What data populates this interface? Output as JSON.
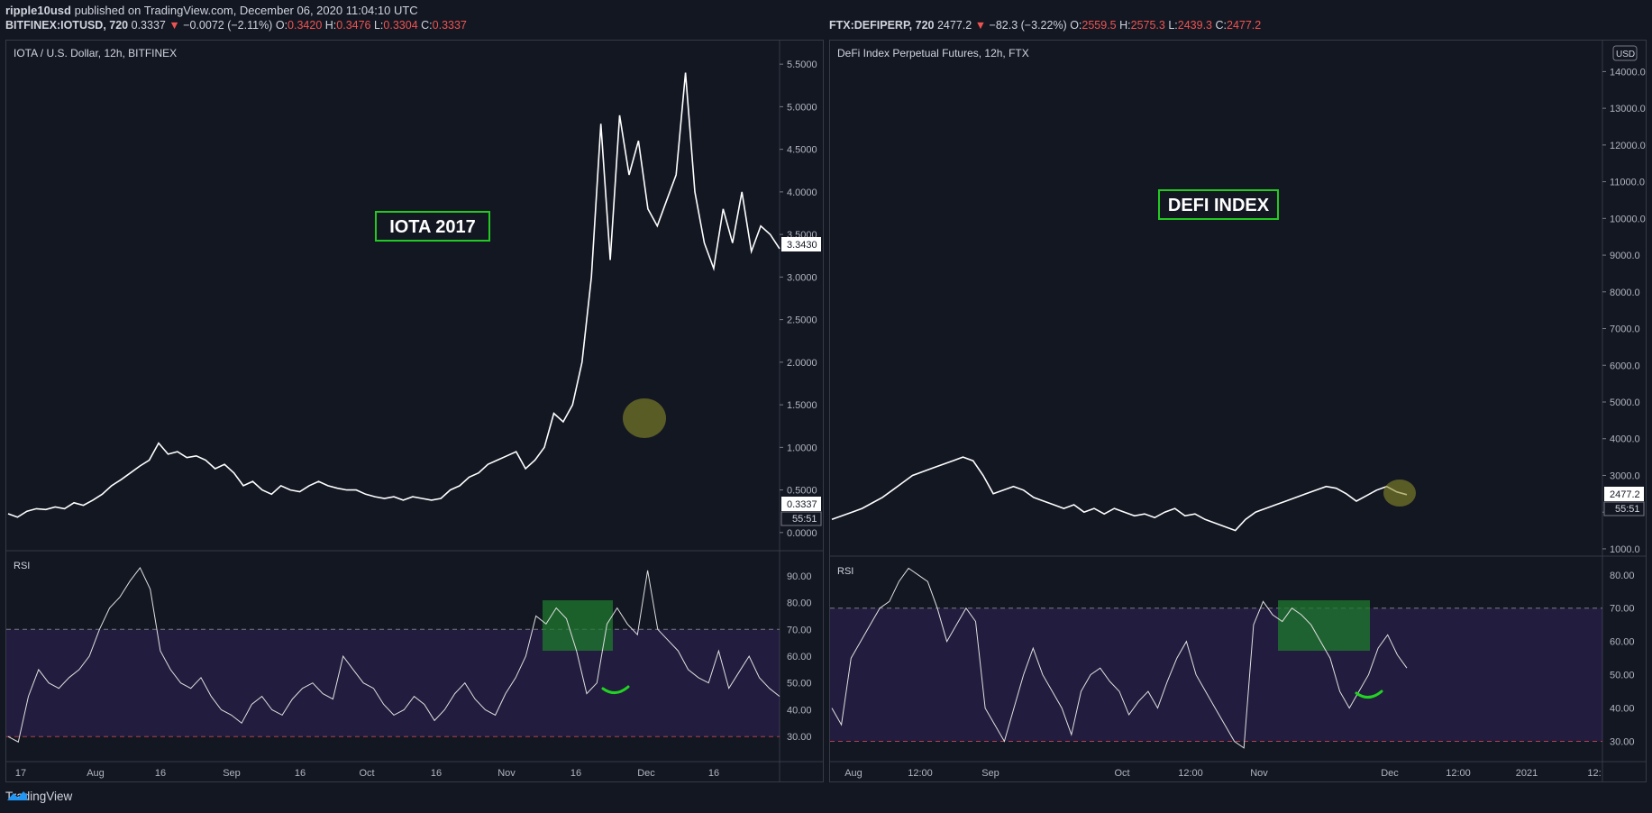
{
  "header": {
    "author": "ripple10usd",
    "published": "published on TradingView.com, December 06, 2020 11:04:10 UTC"
  },
  "footer": {
    "brand": "TradingView"
  },
  "colors": {
    "bg": "#131722",
    "line": "#ffffff",
    "down": "#ef5350",
    "rsi_band": "#7b3fe4",
    "highlight_green": "#1f7a2e",
    "label_green": "#22c922",
    "circle": "#8a8a2a"
  },
  "charts": [
    {
      "id": "left",
      "symbol_line": {
        "symbol": "BITFINEX:IOTUSD, 720",
        "last": "0.3337",
        "change": "−0.0072 (−2.11%)",
        "o_label": "O:",
        "o": "0.3420",
        "h_label": "H:",
        "h": "0.3476",
        "l_label": "L:",
        "l": "0.3304",
        "c_label": "C:",
        "c": "0.3337"
      },
      "pane_title": "IOTA / U.S. Dollar, 12h, BITFINEX",
      "annotation": "IOTA 2017",
      "rsi_title": "RSI",
      "price_label": "0.3337",
      "countdown": "55:51",
      "max_label": "3.3430"
    },
    {
      "id": "right",
      "symbol_line": {
        "symbol": "FTX:DEFIPERP, 720",
        "last": "2477.2",
        "change": "−82.3 (−3.22%)",
        "o_label": "O:",
        "o": "2559.5",
        "h_label": "H:",
        "h": "2575.3",
        "l_label": "L:",
        "l": "2439.3",
        "c_label": "C:",
        "c": "2477.2"
      },
      "pane_title": "DeFi Index Perpetual Futures, 12h, FTX",
      "annotation": "DEFI INDEX",
      "rsi_title": "RSI",
      "price_label": "2477.2",
      "countdown": "55:51",
      "currency": "USD"
    }
  ],
  "chart_data": [
    {
      "type": "line",
      "title": "IOTA / U.S. Dollar, 12h, BITFINEX",
      "y_ticks": [
        "5.5000",
        "5.0000",
        "4.5000",
        "4.0000",
        "3.5000",
        "3.0000",
        "2.5000",
        "2.0000",
        "1.5000",
        "1.0000",
        "0.5000",
        "0.0000"
      ],
      "x_ticks": [
        "17",
        "Aug",
        "16",
        "Sep",
        "16",
        "Oct",
        "16",
        "Nov",
        "16",
        "Dec",
        "16"
      ],
      "ylim": [
        -0.15,
        5.65
      ],
      "series": [
        {
          "values": [
            0.22,
            0.18,
            0.25,
            0.28,
            0.27,
            0.3,
            0.28,
            0.35,
            0.32,
            0.38,
            0.45,
            0.55,
            0.62,
            0.7,
            0.78,
            0.85,
            1.05,
            0.92,
            0.95,
            0.88,
            0.9,
            0.85,
            0.75,
            0.8,
            0.7,
            0.55,
            0.6,
            0.5,
            0.45,
            0.55,
            0.5,
            0.48,
            0.55,
            0.6,
            0.55,
            0.52,
            0.5,
            0.5,
            0.45,
            0.42,
            0.4,
            0.42,
            0.38,
            0.42,
            0.4,
            0.38,
            0.4,
            0.5,
            0.55,
            0.65,
            0.7,
            0.8,
            0.85,
            0.9,
            0.95,
            0.75,
            0.85,
            1.0,
            1.4,
            1.3,
            1.5,
            2.0,
            3.0,
            4.8,
            3.2,
            4.9,
            4.2,
            4.6,
            3.8,
            3.6,
            3.9,
            4.2,
            5.4,
            4.0,
            3.4,
            3.1,
            3.8,
            3.4,
            4.0,
            3.3,
            3.6,
            3.5,
            3.3337
          ]
        }
      ]
    },
    {
      "type": "line",
      "title": "RSI (IOTA)",
      "y_ticks": [
        "90.00",
        "80.00",
        "70.00",
        "60.00",
        "50.00",
        "40.00",
        "30.00"
      ],
      "band": [
        30,
        70
      ],
      "ylim": [
        22,
        98
      ],
      "series": [
        {
          "values": [
            30,
            28,
            45,
            55,
            50,
            48,
            52,
            55,
            60,
            70,
            78,
            82,
            88,
            93,
            85,
            62,
            55,
            50,
            48,
            52,
            45,
            40,
            38,
            35,
            42,
            45,
            40,
            38,
            44,
            48,
            50,
            46,
            44,
            60,
            55,
            50,
            48,
            42,
            38,
            40,
            45,
            42,
            36,
            40,
            46,
            50,
            44,
            40,
            38,
            46,
            52,
            60,
            75,
            72,
            78,
            74,
            62,
            46,
            50,
            72,
            78,
            72,
            68,
            92,
            70,
            66,
            62,
            55,
            52,
            50,
            62,
            48,
            54,
            60,
            52,
            48,
            45
          ]
        }
      ]
    },
    {
      "type": "line",
      "title": "DeFi Index Perpetual Futures, 12h, FTX",
      "y_ticks": [
        "14000.0",
        "13000.0",
        "12000.0",
        "11000.0",
        "10000.0",
        "9000.0",
        "8000.0",
        "7000.0",
        "6000.0",
        "5000.0",
        "4000.0",
        "3000.0",
        "2000.0",
        "1000.0"
      ],
      "x_ticks": [
        "Aug",
        "12:00",
        "Sep",
        "Oct",
        "12:00",
        "Nov",
        "Dec",
        "12:00",
        "2021",
        "12:"
      ],
      "ylim": [
        900,
        14550
      ],
      "series": [
        {
          "values": [
            1800,
            1900,
            2000,
            2100,
            2250,
            2400,
            2600,
            2800,
            3000,
            3100,
            3200,
            3300,
            3400,
            3500,
            3400,
            3000,
            2500,
            2600,
            2700,
            2600,
            2400,
            2300,
            2200,
            2100,
            2200,
            2000,
            2100,
            1950,
            2100,
            2000,
            1900,
            1950,
            1850,
            2000,
            2100,
            1900,
            1950,
            1800,
            1700,
            1600,
            1500,
            1800,
            2000,
            2100,
            2200,
            2300,
            2400,
            2500,
            2600,
            2700,
            2650,
            2500,
            2300,
            2450,
            2600,
            2700,
            2550,
            2477
          ]
        }
      ]
    },
    {
      "type": "line",
      "title": "RSI (DeFi)",
      "y_ticks": [
        "80.00",
        "70.00",
        "60.00",
        "50.00",
        "40.00",
        "30.00"
      ],
      "band": [
        30,
        70
      ],
      "ylim": [
        25,
        84
      ],
      "series": [
        {
          "values": [
            40,
            35,
            55,
            60,
            65,
            70,
            72,
            78,
            82,
            80,
            78,
            70,
            60,
            65,
            70,
            66,
            40,
            35,
            30,
            40,
            50,
            58,
            50,
            45,
            40,
            32,
            45,
            50,
            52,
            48,
            45,
            38,
            42,
            45,
            40,
            48,
            55,
            60,
            50,
            45,
            40,
            35,
            30,
            28,
            65,
            72,
            68,
            66,
            70,
            68,
            65,
            60,
            55,
            45,
            40,
            45,
            50,
            58,
            62,
            56,
            52
          ]
        }
      ]
    }
  ]
}
